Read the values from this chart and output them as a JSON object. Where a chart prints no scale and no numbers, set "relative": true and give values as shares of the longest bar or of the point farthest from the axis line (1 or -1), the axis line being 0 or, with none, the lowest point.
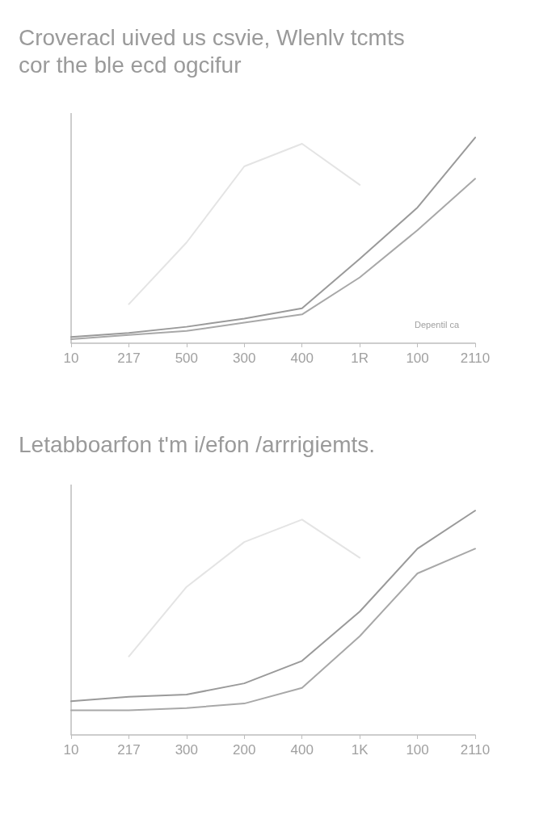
{
  "chart_data": [
    {
      "type": "line",
      "title": "Croveracl uived us csvie, Wlenlv tcmts\ncor the ble ecd ogcifur",
      "annotations": [
        "Depentil ca"
      ],
      "relative": true,
      "grid": false,
      "marker": "none",
      "line_style": "solid",
      "categories": [
        "10",
        "217",
        "500",
        "300",
        "400",
        "1R",
        "100",
        "2110"
      ],
      "series": [
        {
          "color": "#e4e4e4",
          "values": [
            null,
            0.19,
            0.49,
            0.86,
            0.97,
            0.77,
            null,
            null
          ]
        },
        {
          "color": "#a8a8a8",
          "values": [
            0.02,
            0.04,
            0.06,
            0.1,
            0.14,
            0.32,
            0.55,
            0.8
          ]
        },
        {
          "color": "#9a9a9a",
          "values": [
            0.03,
            0.05,
            0.08,
            0.12,
            0.17,
            0.41,
            0.66,
            1
          ]
        }
      ]
    },
    {
      "type": "line",
      "title": "Letabboarfon t'm i/efon /arrrigiemts.",
      "relative": true,
      "grid": false,
      "marker": "none",
      "line_style": "solid",
      "categories": [
        "10",
        "217",
        "300",
        "200",
        "400",
        "1K",
        "100",
        "2110"
      ],
      "series": [
        {
          "color": "#e4e4e4",
          "values": [
            null,
            0.35,
            0.66,
            0.86,
            0.96,
            0.79,
            null,
            null
          ]
        },
        {
          "color": "#a8a8a8",
          "values": [
            0.11,
            0.11,
            0.12,
            0.14,
            0.21,
            0.44,
            0.72,
            0.83
          ]
        },
        {
          "color": "#9a9a9a",
          "values": [
            0.15,
            0.17,
            0.18,
            0.23,
            0.33,
            0.55,
            0.83,
            1
          ]
        }
      ]
    }
  ]
}
